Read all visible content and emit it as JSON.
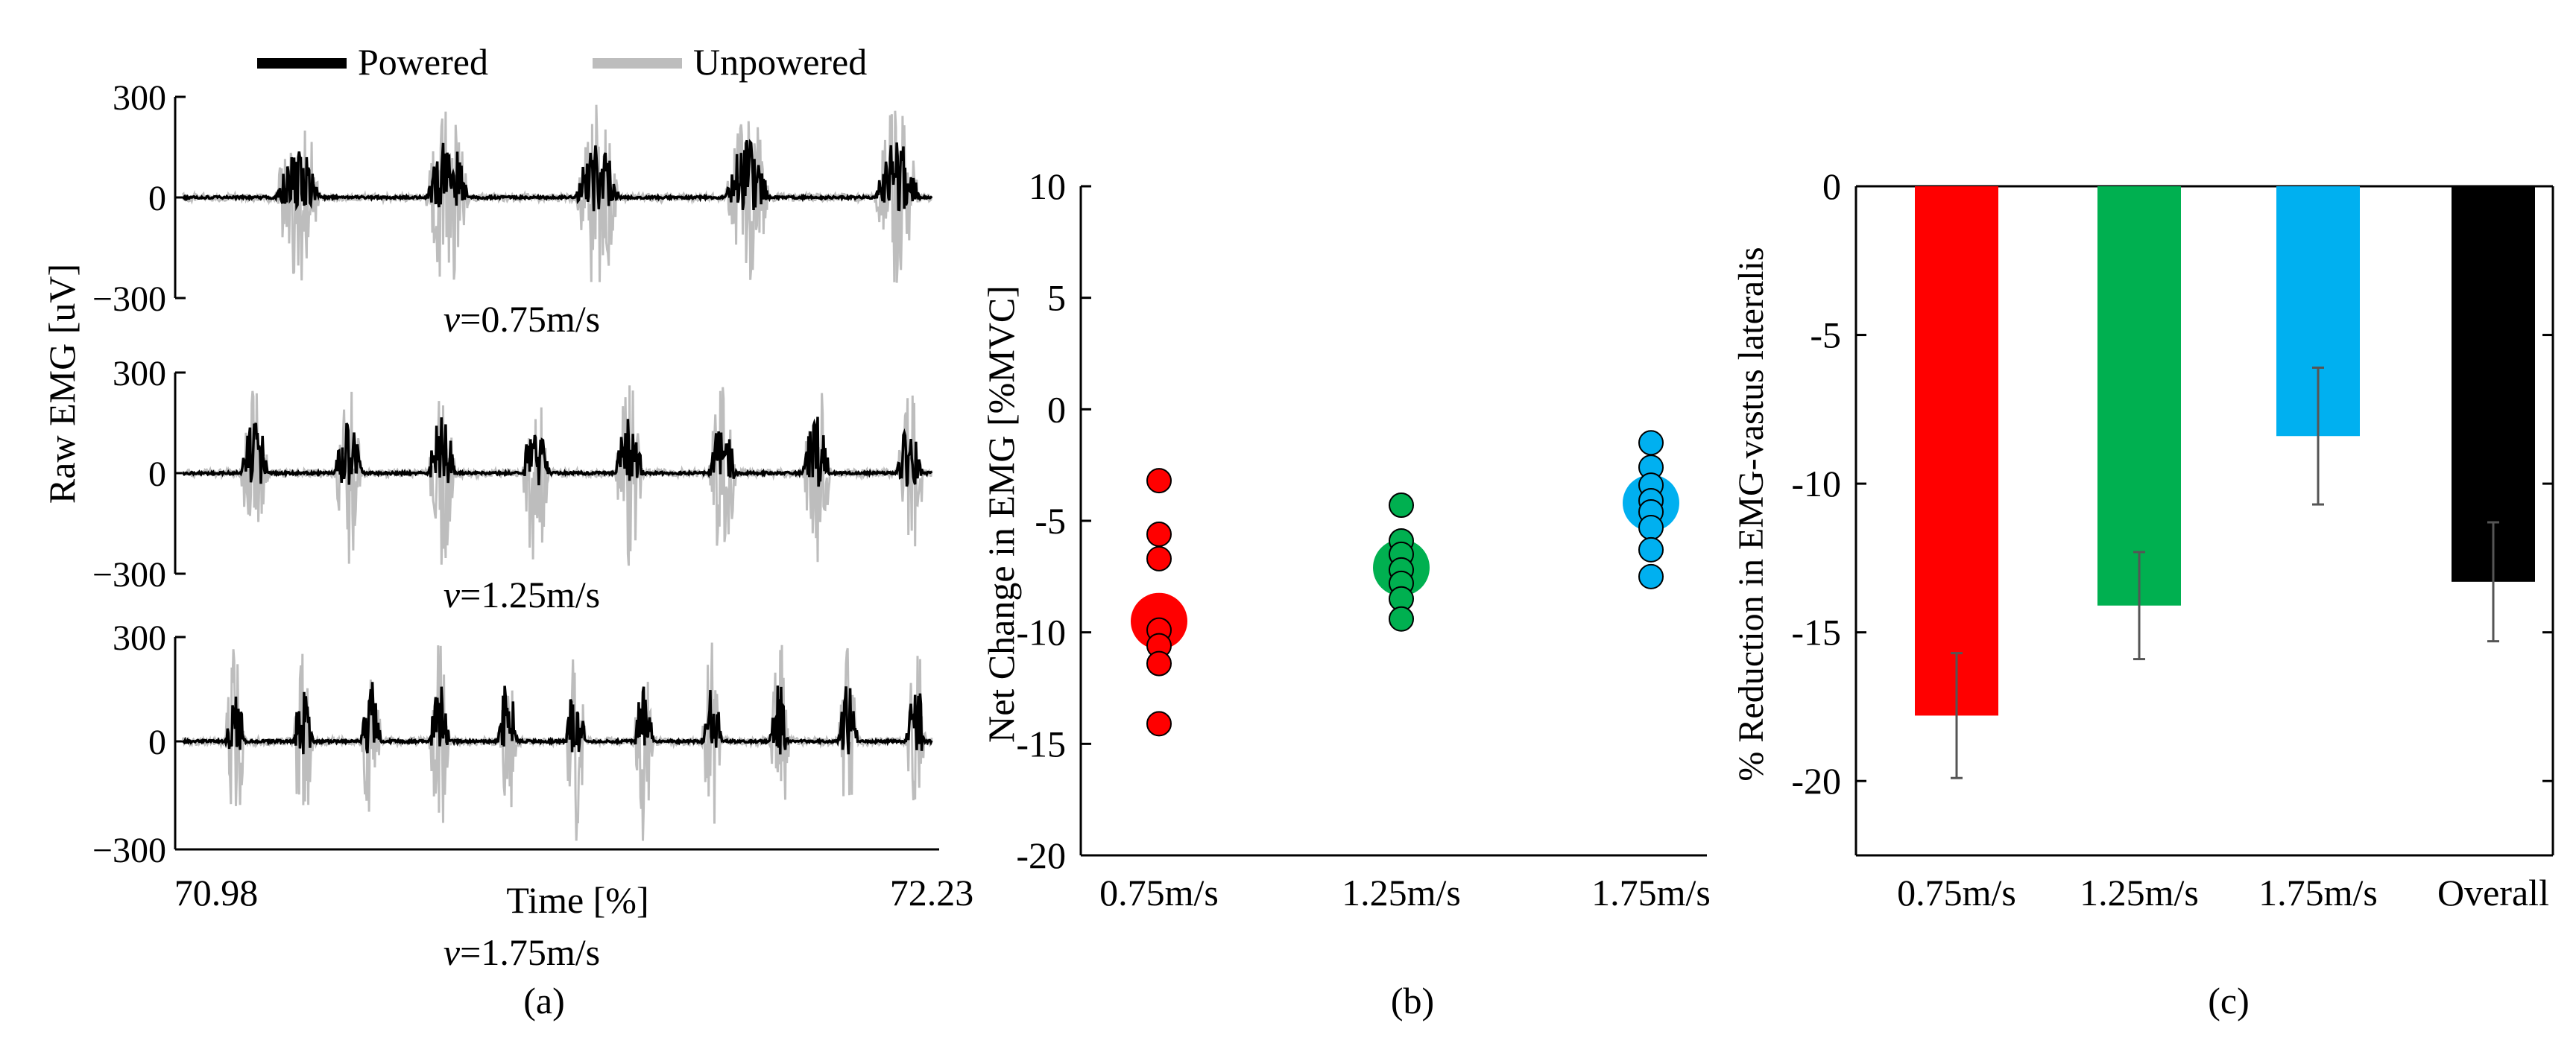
{
  "legend": {
    "powered": "Powered",
    "unpowered": "Unpowered"
  },
  "colors": {
    "powered": "#000000",
    "unpowered": "#bdbdbd",
    "v075": "#ff0000",
    "v125": "#00b050",
    "v175": "#00b0f0",
    "overall": "#000000"
  },
  "panel_labels": {
    "a": "(a)",
    "b": "(b)",
    "c": "(c)"
  },
  "chart_data": [
    {
      "type": "line",
      "panel": "a",
      "ylabel": "Raw EMG [uV]",
      "xlabel": "Time [%]",
      "x_ticks": [
        "70.98",
        "72.23"
      ],
      "xlim": [
        70.98,
        72.23
      ],
      "series": [
        {
          "name": "Powered"
        },
        {
          "name": "Unpowered"
        }
      ],
      "subplots": [
        {
          "caption": "=0.75m/s",
          "caption_symbol": "v",
          "y_ticks": [
            "300",
            "0",
            "−300"
          ],
          "ylim": [
            -300,
            300
          ],
          "bursts": 5
        },
        {
          "caption": "=1.25m/s",
          "caption_symbol": "v",
          "y_ticks": [
            "300",
            "0",
            "−300"
          ],
          "ylim": [
            -300,
            300
          ],
          "bursts": 8
        },
        {
          "caption": "=1.75m/s",
          "caption_symbol": "v",
          "y_ticks": [
            "300",
            "0",
            "−300"
          ],
          "ylim": [
            -300,
            300
          ],
          "bursts": 11
        }
      ]
    },
    {
      "type": "scatter",
      "panel": "b",
      "ylabel": "Net Change in EMG [%MVC]",
      "categories": [
        "0.75m/s",
        "1.25m/s",
        "1.75m/s"
      ],
      "y_ticks": [
        "10",
        "5",
        "0",
        "-5",
        "-10",
        "-15",
        "-20"
      ],
      "ylim": [
        -20,
        10
      ],
      "series": [
        {
          "category": "0.75m/s",
          "points": [
            -3.2,
            -5.6,
            -6.7,
            -9.9,
            -10.6,
            -11.4,
            -14.1
          ],
          "mean": -9.5
        },
        {
          "category": "1.25m/s",
          "points": [
            -4.3,
            -5.9,
            -6.5,
            -7.2,
            -7.8,
            -8.5,
            -9.4
          ],
          "mean": -7.1
        },
        {
          "category": "1.75m/s",
          "points": [
            -1.5,
            -2.6,
            -3.4,
            -4.1,
            -4.6,
            -5.3,
            -6.3,
            -7.5
          ],
          "mean": -4.2
        }
      ]
    },
    {
      "type": "bar",
      "panel": "c",
      "ylabel": "% Reduction in EMG-vastus lateralis",
      "categories": [
        "0.75m/s",
        "1.25m/s",
        "1.75m/s",
        "Overall"
      ],
      "values": [
        -17.8,
        -14.1,
        -8.4,
        -13.3
      ],
      "errors": [
        2.1,
        1.8,
        2.3,
        2.0
      ],
      "y_ticks": [
        "0",
        "-5",
        "-10",
        "-15",
        "-20"
      ],
      "ylim": [
        -22.5,
        0
      ]
    }
  ]
}
